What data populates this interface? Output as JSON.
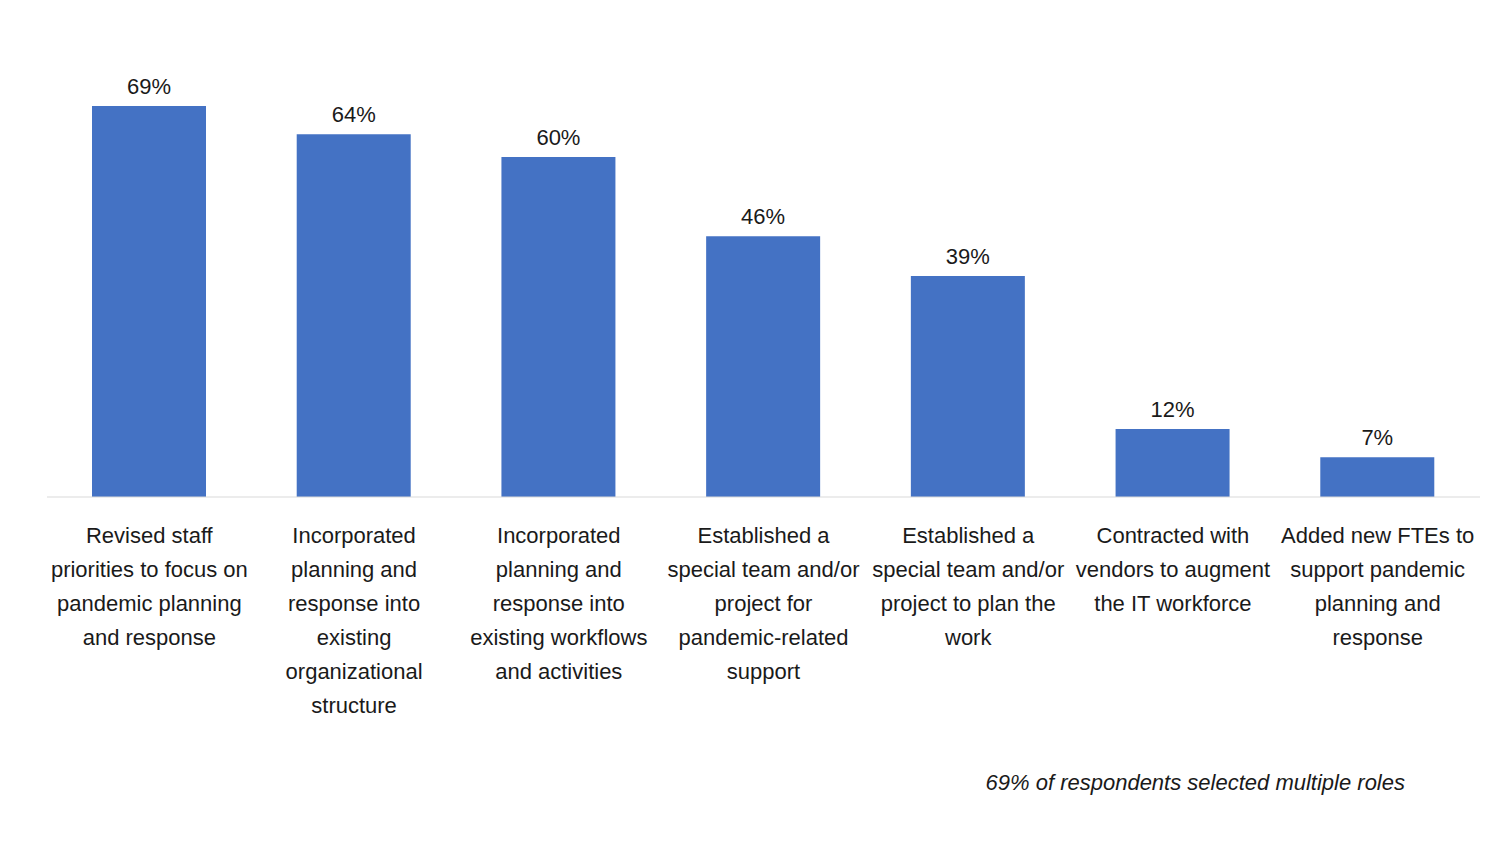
{
  "chart_data": {
    "type": "bar",
    "categories": [
      "Revised staff priorities to focus on pandemic planning and response",
      "Incorporated planning and response into existing organizational structure",
      "Incorporated planning and response into existing workflows and activities",
      "Established a special team and/or project for pandemic-related support",
      "Established a special team and/or project to plan the work",
      "Contracted with vendors to augment the IT workforce",
      "Added new FTEs to support pandemic planning and response"
    ],
    "values": [
      69,
      64,
      60,
      46,
      39,
      12,
      7
    ],
    "value_labels": [
      "69%",
      "64%",
      "60%",
      "46%",
      "39%",
      "12%",
      "7%"
    ],
    "color": "#4472c4",
    "data_labels": true,
    "tick_labels": "x",
    "annotations": [
      "69% of respondents selected multiple roles"
    ]
  }
}
